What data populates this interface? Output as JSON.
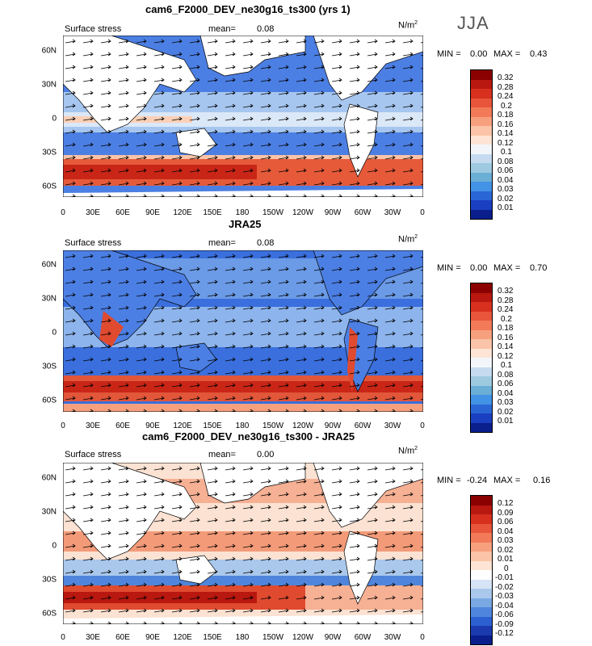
{
  "season": "JJA",
  "panels": [
    {
      "title": "cam6_F2000_DEV_ne30g16_ts300 (yrs 1)",
      "field": "Surface stress",
      "mean_label": "mean=",
      "mean": "0.08",
      "units": "N/m",
      "units_sup": "2",
      "min_label": "MIN =",
      "min": "0.00",
      "max_label": "MAX =",
      "max": "0.43"
    },
    {
      "title": "JRA25",
      "field": "Surface stress",
      "mean_label": "mean=",
      "mean": "0.08",
      "units": "N/m",
      "units_sup": "2",
      "min_label": "MIN =",
      "min": "0.00",
      "max_label": "MAX =",
      "max": "0.70"
    },
    {
      "title": "cam6_F2000_DEV_ne30g16_ts300 - JRA25",
      "field": "Surface stress",
      "mean_label": "mean=",
      "mean": "0.00",
      "units": "N/m",
      "units_sup": "2",
      "min_label": "MIN =",
      "min": "-0.24",
      "max_label": "MAX =",
      "max": "0.16"
    }
  ],
  "x_ticks": [
    "0",
    "30E",
    "60E",
    "90E",
    "120E",
    "150E",
    "180",
    "150W",
    "120W",
    "90W",
    "60W",
    "30W",
    "0"
  ],
  "y_ticks": [
    "60N",
    "30N",
    "0",
    "30S",
    "60S"
  ],
  "colorbar_abs": {
    "labels": [
      "0.32",
      "0.28",
      "0.24",
      "0.2",
      "0.18",
      "0.16",
      "0.14",
      "0.12",
      "0.1",
      "0.08",
      "0.06",
      "0.04",
      "0.03",
      "0.02",
      "0.01"
    ],
    "colors": [
      "#8b0000",
      "#b8180f",
      "#d7301f",
      "#e8553a",
      "#f27a58",
      "#f7a07e",
      "#fbc4a8",
      "#fde4d4",
      "#f2f6fb",
      "#c6dbef",
      "#9ecae1",
      "#6baed6",
      "#4292e6",
      "#2a66d6",
      "#1a3fc0",
      "#0a1e8c"
    ]
  },
  "colorbar_diff": {
    "labels": [
      "0.12",
      "0.09",
      "0.06",
      "0.04",
      "0.03",
      "0.02",
      "0.01",
      "0",
      "-0.01",
      "-0.02",
      "-0.03",
      "-0.04",
      "-0.06",
      "-0.09",
      "-0.12"
    ],
    "colors": [
      "#8b0000",
      "#b8180f",
      "#d7301f",
      "#e8553a",
      "#f27a58",
      "#f7a07e",
      "#fbc4a8",
      "#fde4d4",
      "#ffffff",
      "#d6e4f5",
      "#a9c8ec",
      "#7aa8e3",
      "#4f86dc",
      "#2c5fd0",
      "#1a3aae",
      "#0a1e8c"
    ]
  }
}
